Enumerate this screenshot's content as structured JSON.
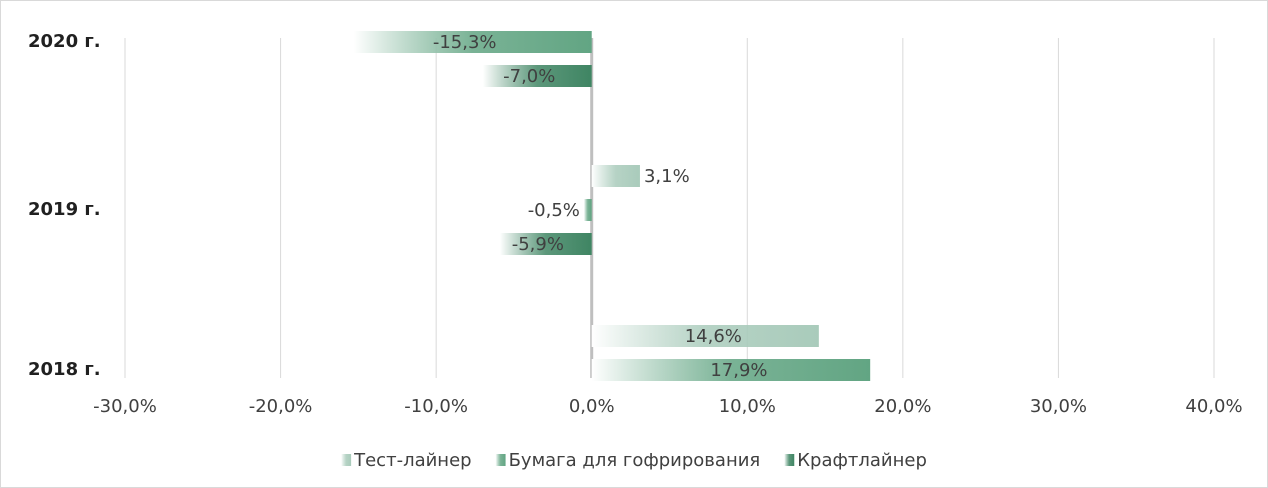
{
  "chart_data": {
    "type": "hbar",
    "categories": [
      "2018 г.",
      "2019 г.",
      "2020 г."
    ],
    "series": [
      {
        "name": "Тест-лайнер",
        "color": "#a9cbbb",
        "values": [
          14.6,
          3.1,
          null
        ],
        "value_labels": [
          "14,6%",
          "3,1%",
          null
        ]
      },
      {
        "name": "Бумага для гофрирования",
        "color": "#62a583",
        "values": [
          17.9,
          -0.5,
          -15.3
        ],
        "value_labels": [
          "17,9%",
          "-0,5%",
          "-15,3%"
        ]
      },
      {
        "name": "Крафтлайнер",
        "color": "#3f8563",
        "values": [
          null,
          -5.9,
          -7.0
        ],
        "value_labels": [
          null,
          "-5,9%",
          "-7,0%"
        ]
      }
    ],
    "xlim": [
      -30,
      40
    ],
    "xticks": [
      {
        "value": -30,
        "label": "-30,0%"
      },
      {
        "value": -20,
        "label": "-20,0%"
      },
      {
        "value": -10,
        "label": "-10,0%"
      },
      {
        "value": 0,
        "label": "0,0%"
      },
      {
        "value": 10,
        "label": "10,0%"
      },
      {
        "value": 20,
        "label": "20,0%"
      },
      {
        "value": 30,
        "label": "30,0%"
      },
      {
        "value": 40,
        "label": "40,0%"
      }
    ],
    "grid": true,
    "legend": "bottom"
  }
}
